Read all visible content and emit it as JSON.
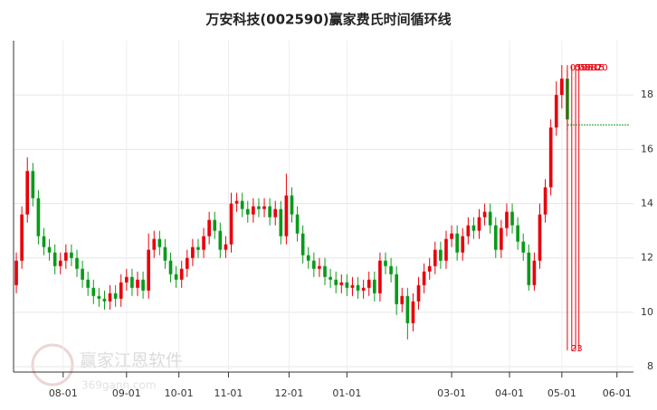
{
  "chart_data": {
    "type": "candlestick",
    "title": "万安科技(002590)赢家费氏时间循环线",
    "watermark": "赢家江恩软件",
    "watermark_sub": "369gann.com",
    "up_color": "#e8000b",
    "down_color": "#0a9a1a",
    "open": [
      11.0,
      11.9,
      13.6,
      15.2,
      14.2,
      12.8,
      12.4,
      12.2,
      11.7,
      11.9,
      12.2,
      12.0,
      11.6,
      11.2,
      10.9,
      10.6,
      10.5,
      10.4,
      10.7,
      10.5,
      11.1,
      11.3,
      10.9,
      11.2,
      10.8,
      12.3,
      12.7,
      12.4,
      11.9,
      11.4,
      11.2,
      11.6,
      12.0,
      12.4,
      12.3,
      12.8,
      13.4,
      13.0,
      12.3,
      12.5,
      14.0,
      14.1,
      13.8,
      13.6,
      13.9,
      13.8,
      13.9,
      13.5,
      13.8,
      12.8,
      14.3,
      13.6,
      12.9,
      12.1,
      11.9,
      11.6,
      11.7,
      11.3,
      11.2,
      11.0,
      11.1,
      10.9,
      11.0,
      10.8,
      10.9,
      11.2,
      10.7,
      11.9,
      11.7,
      11.4,
      10.3,
      10.6,
      9.6,
      10.4,
      11.0,
      11.5,
      11.7,
      12.3,
      11.9,
      12.7,
      12.9,
      12.2,
      12.8,
      13.2,
      13.0,
      13.5,
      13.7,
      13.2,
      12.3,
      13.1,
      13.7,
      13.2,
      12.6,
      12.2,
      11.0,
      11.9,
      13.6,
      14.6,
      16.8,
      18.0,
      18.6
    ],
    "high": [
      12.2,
      13.9,
      15.7,
      15.5,
      14.5,
      13.1,
      12.7,
      12.5,
      12.2,
      12.5,
      12.5,
      12.3,
      11.9,
      11.5,
      11.2,
      10.9,
      10.8,
      11.0,
      11.0,
      11.4,
      11.6,
      11.6,
      11.5,
      11.5,
      12.9,
      13.0,
      13.0,
      12.7,
      12.2,
      11.7,
      11.9,
      12.3,
      12.7,
      12.7,
      13.1,
      13.7,
      13.7,
      13.3,
      12.8,
      14.4,
      14.4,
      14.4,
      14.1,
      14.2,
      14.2,
      14.2,
      14.2,
      14.1,
      14.1,
      15.1,
      14.6,
      13.9,
      13.2,
      12.4,
      12.2,
      12.0,
      12.0,
      11.6,
      11.5,
      11.4,
      11.4,
      11.3,
      11.3,
      11.2,
      11.5,
      11.5,
      12.2,
      12.2,
      12.0,
      11.7,
      10.9,
      10.9,
      10.7,
      11.3,
      11.8,
      12.0,
      12.6,
      12.6,
      13.0,
      13.2,
      13.2,
      13.1,
      13.5,
      13.5,
      13.8,
      14.0,
      14.0,
      13.5,
      13.4,
      14.0,
      14.0,
      13.5,
      12.9,
      12.5,
      12.2,
      14.0,
      14.9,
      17.1,
      18.5,
      19.1,
      18.9
    ],
    "low": [
      10.7,
      11.6,
      13.3,
      13.9,
      12.5,
      12.1,
      11.9,
      11.4,
      11.4,
      11.6,
      11.7,
      11.3,
      10.9,
      10.6,
      10.3,
      10.2,
      10.1,
      10.1,
      10.2,
      10.2,
      10.8,
      10.6,
      10.6,
      10.5,
      10.5,
      12.0,
      12.1,
      11.6,
      11.1,
      10.9,
      10.9,
      11.3,
      11.7,
      12.0,
      12.0,
      12.5,
      12.7,
      12.0,
      12.0,
      12.2,
      13.7,
      13.5,
      13.3,
      13.3,
      13.5,
      13.5,
      13.2,
      13.2,
      12.5,
      12.5,
      13.3,
      12.6,
      11.8,
      11.6,
      11.3,
      11.3,
      11.0,
      10.9,
      10.7,
      10.7,
      10.6,
      10.6,
      10.5,
      10.5,
      10.6,
      10.4,
      10.4,
      11.4,
      11.1,
      9.9,
      10.0,
      9.0,
      9.3,
      10.1,
      10.7,
      11.2,
      11.4,
      11.6,
      11.6,
      12.4,
      11.9,
      11.9,
      12.5,
      12.7,
      12.7,
      13.2,
      12.9,
      12.0,
      12.0,
      12.8,
      12.9,
      12.3,
      11.9,
      10.8,
      10.8,
      11.6,
      13.3,
      14.3,
      16.5,
      17.5,
      16.7
    ],
    "close": [
      11.9,
      13.6,
      15.2,
      14.2,
      12.8,
      12.4,
      12.2,
      11.7,
      11.9,
      12.2,
      12.0,
      11.6,
      11.2,
      10.9,
      10.6,
      10.5,
      10.4,
      10.7,
      10.5,
      11.1,
      11.3,
      10.9,
      11.2,
      10.8,
      12.3,
      12.7,
      12.4,
      11.9,
      11.4,
      11.2,
      11.6,
      12.0,
      12.4,
      12.3,
      12.8,
      13.4,
      13.0,
      12.3,
      12.5,
      14.0,
      14.1,
      13.8,
      13.6,
      13.9,
      13.8,
      13.9,
      13.5,
      13.8,
      12.8,
      14.3,
      13.6,
      12.9,
      12.1,
      11.9,
      11.6,
      11.7,
      11.3,
      11.2,
      11.0,
      11.1,
      10.9,
      11.0,
      10.8,
      10.9,
      11.2,
      10.7,
      11.9,
      11.7,
      11.4,
      10.3,
      10.6,
      9.6,
      10.4,
      11.0,
      11.5,
      11.7,
      12.3,
      11.9,
      12.7,
      12.9,
      12.2,
      12.8,
      13.2,
      13.0,
      13.5,
      13.7,
      13.2,
      12.3,
      13.1,
      13.7,
      13.2,
      12.6,
      12.2,
      11.0,
      11.9,
      13.6,
      14.6,
      16.8,
      18.0,
      18.6,
      17.1
    ],
    "xlim": [
      -0.5,
      112
    ],
    "xticks": [
      {
        "value": 8.5,
        "label": "08-01"
      },
      {
        "value": 20,
        "label": "09-01"
      },
      {
        "value": 29.5,
        "label": "10-01"
      },
      {
        "value": 38.5,
        "label": "11-01"
      },
      {
        "value": 49.5,
        "label": "12-01"
      },
      {
        "value": 60,
        "label": "01-01"
      },
      {
        "value": 79,
        "label": "03-01"
      },
      {
        "value": 89.5,
        "label": "04-01"
      },
      {
        "value": 99,
        "label": "05-01"
      },
      {
        "value": 109,
        "label": "06-01"
      }
    ],
    "ylim": [
      7.8,
      20
    ],
    "yticks": [
      8,
      10,
      12,
      14,
      16,
      18
    ],
    "grid": true,
    "cycle_color": "#e8000b",
    "cycle_lines": [
      {
        "x": 100,
        "label": "05-08"
      },
      {
        "x": 100.8,
        "label": "05-10"
      },
      {
        "x": 101.5,
        "label": "05-15"
      },
      {
        "x": 102.1,
        "label": "05-20"
      }
    ],
    "cycle_top": 19.1,
    "cycle_bottom": 8.6,
    "cycle_bottom_label": "23",
    "reference_line": {
      "value": 16.9,
      "color": "#0a9a1a"
    }
  }
}
